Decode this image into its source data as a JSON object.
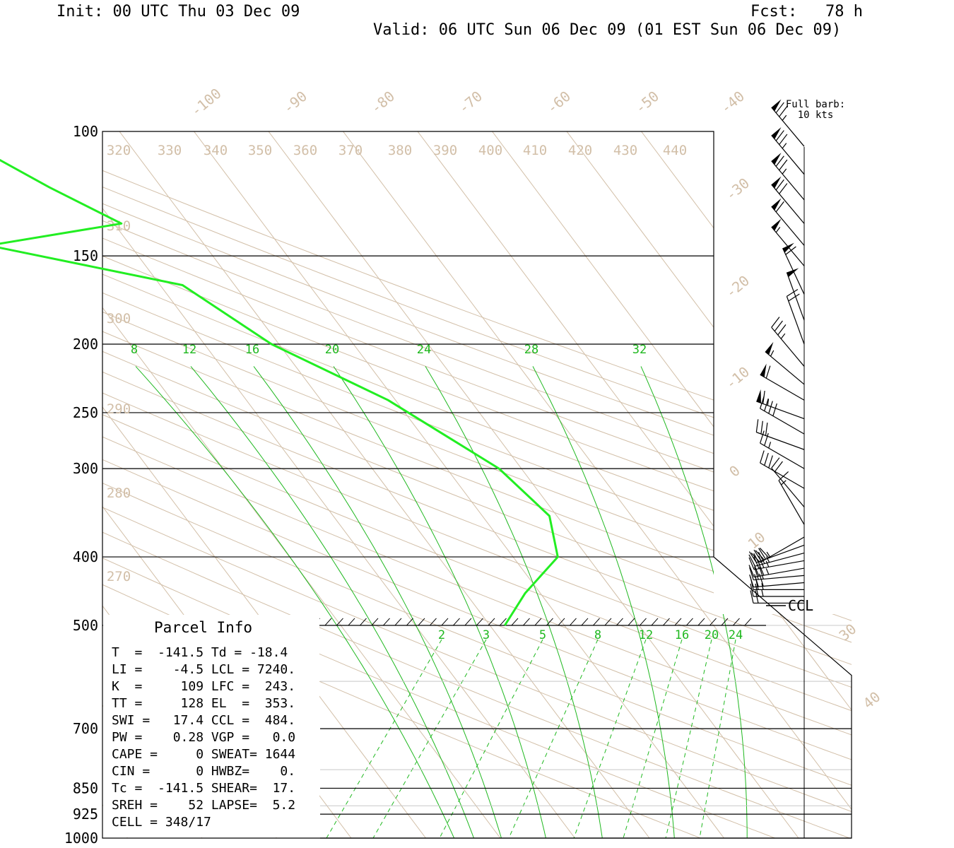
{
  "header": {
    "init": "Init: 00 UTC Thu 03 Dec 09",
    "fcst": "Fcst:   78 h",
    "valid": "Valid: 06 UTC Sun 06 Dec 09 (01 EST Sun 06 Dec 09)"
  },
  "legend": {
    "line1": "Full barb:",
    "line2": "10 kts"
  },
  "ccl_label": "CCL",
  "parcel_info": {
    "title": "Parcel Info",
    "rows": [
      "T  =  -141.5 Td = -18.4",
      "LI =    -4.5 LCL = 7240.",
      "K  =     109 LFC =  243.",
      "TT =     128 EL  =  353.",
      "SWI =   17.4 CCL =  484.",
      "PW =    0.28 VGP =   0.0",
      "CAPE =     0 SWEAT= 1644",
      "CIN =      0 HWBZ=    0.",
      "Tc =  -141.5 SHEAR=  17.",
      "SREH =    52 LAPSE=  5.2",
      "CELL = 348/17"
    ]
  },
  "colors": {
    "isobar": "#000000",
    "isotherm": "#d2bfa8",
    "dry_adiabat": "#d2bfa8",
    "moist_adiabat": "#1fb81f",
    "mixing_ratio": "#1fb81f",
    "temperature_profile": "#22ee22",
    "wind_barb": "#000000"
  },
  "chart_data": {
    "type": "skew-t log-p",
    "y_axis": {
      "quantity": "pressure (hPa)",
      "scale": "log",
      "range": [
        100,
        1000
      ],
      "tick_labels": [
        "100",
        "150",
        "200",
        "250",
        "300",
        "400",
        "500",
        "700",
        "850",
        "925",
        "1000"
      ]
    },
    "isotherm_labels": [
      "-100",
      "-90",
      "-80",
      "-70",
      "-60",
      "-50",
      "-40",
      "-30",
      "-20",
      "-10",
      "0",
      "10",
      "30",
      "40"
    ],
    "dry_adiabat_labels": [
      "320",
      "330",
      "340",
      "350",
      "360",
      "370",
      "380",
      "390",
      "400",
      "410",
      "420",
      "430",
      "440",
      "310",
      "300",
      "290",
      "280",
      "270"
    ],
    "moist_adiabat_labels": [
      "8",
      "12",
      "16",
      "20",
      "24",
      "28",
      "32"
    ],
    "mixing_ratio_labels": [
      "2",
      "3",
      "5",
      "8",
      "12",
      "16",
      "20",
      "24"
    ],
    "series": [
      {
        "kind": "temperature",
        "points": [
          {
            "p": 100,
            "t": -43
          },
          {
            "p": 120,
            "t": -35
          },
          {
            "p": 135,
            "t": -29
          },
          {
            "p": 145,
            "t": -49
          },
          {
            "p": 165,
            "t": -27
          },
          {
            "p": 200,
            "t": -21
          },
          {
            "p": 240,
            "t": -11
          },
          {
            "p": 300,
            "t": -3
          },
          {
            "p": 350,
            "t": -1
          },
          {
            "p": 400,
            "t": -4
          },
          {
            "p": 450,
            "t": -12
          },
          {
            "p": 500,
            "t": -18
          }
        ]
      }
    ],
    "wind_barbs": [
      {
        "p": 105,
        "dir": 320,
        "spd": 75
      },
      {
        "p": 115,
        "dir": 320,
        "spd": 75
      },
      {
        "p": 125,
        "dir": 320,
        "spd": 75
      },
      {
        "p": 135,
        "dir": 320,
        "spd": 70
      },
      {
        "p": 145,
        "dir": 320,
        "spd": 60
      },
      {
        "p": 155,
        "dir": 320,
        "spd": 55
      },
      {
        "p": 170,
        "dir": 335,
        "spd": 60
      },
      {
        "p": 185,
        "dir": 340,
        "spd": 50
      },
      {
        "p": 200,
        "dir": 340,
        "spd": 20
      },
      {
        "p": 215,
        "dir": 320,
        "spd": 35
      },
      {
        "p": 228,
        "dir": 310,
        "spd": 55
      },
      {
        "p": 240,
        "dir": 300,
        "spd": 60
      },
      {
        "p": 255,
        "dir": 290,
        "spd": 65
      },
      {
        "p": 268,
        "dir": 300,
        "spd": 40
      },
      {
        "p": 282,
        "dir": 290,
        "spd": 30
      },
      {
        "p": 300,
        "dir": 300,
        "spd": 25
      },
      {
        "p": 320,
        "dir": 300,
        "spd": 30
      },
      {
        "p": 340,
        "dir": 320,
        "spd": 20
      },
      {
        "p": 360,
        "dir": 330,
        "spd": 15
      },
      {
        "p": 375,
        "dir": 240,
        "spd": 30
      },
      {
        "p": 385,
        "dir": 250,
        "spd": 35
      },
      {
        "p": 395,
        "dir": 255,
        "spd": 35
      },
      {
        "p": 405,
        "dir": 260,
        "spd": 35
      },
      {
        "p": 415,
        "dir": 260,
        "spd": 35
      },
      {
        "p": 425,
        "dir": 265,
        "spd": 30
      },
      {
        "p": 435,
        "dir": 265,
        "spd": 30
      },
      {
        "p": 445,
        "dir": 270,
        "spd": 25
      },
      {
        "p": 455,
        "dir": 270,
        "spd": 25
      },
      {
        "p": 465,
        "dir": 270,
        "spd": 20
      }
    ]
  }
}
